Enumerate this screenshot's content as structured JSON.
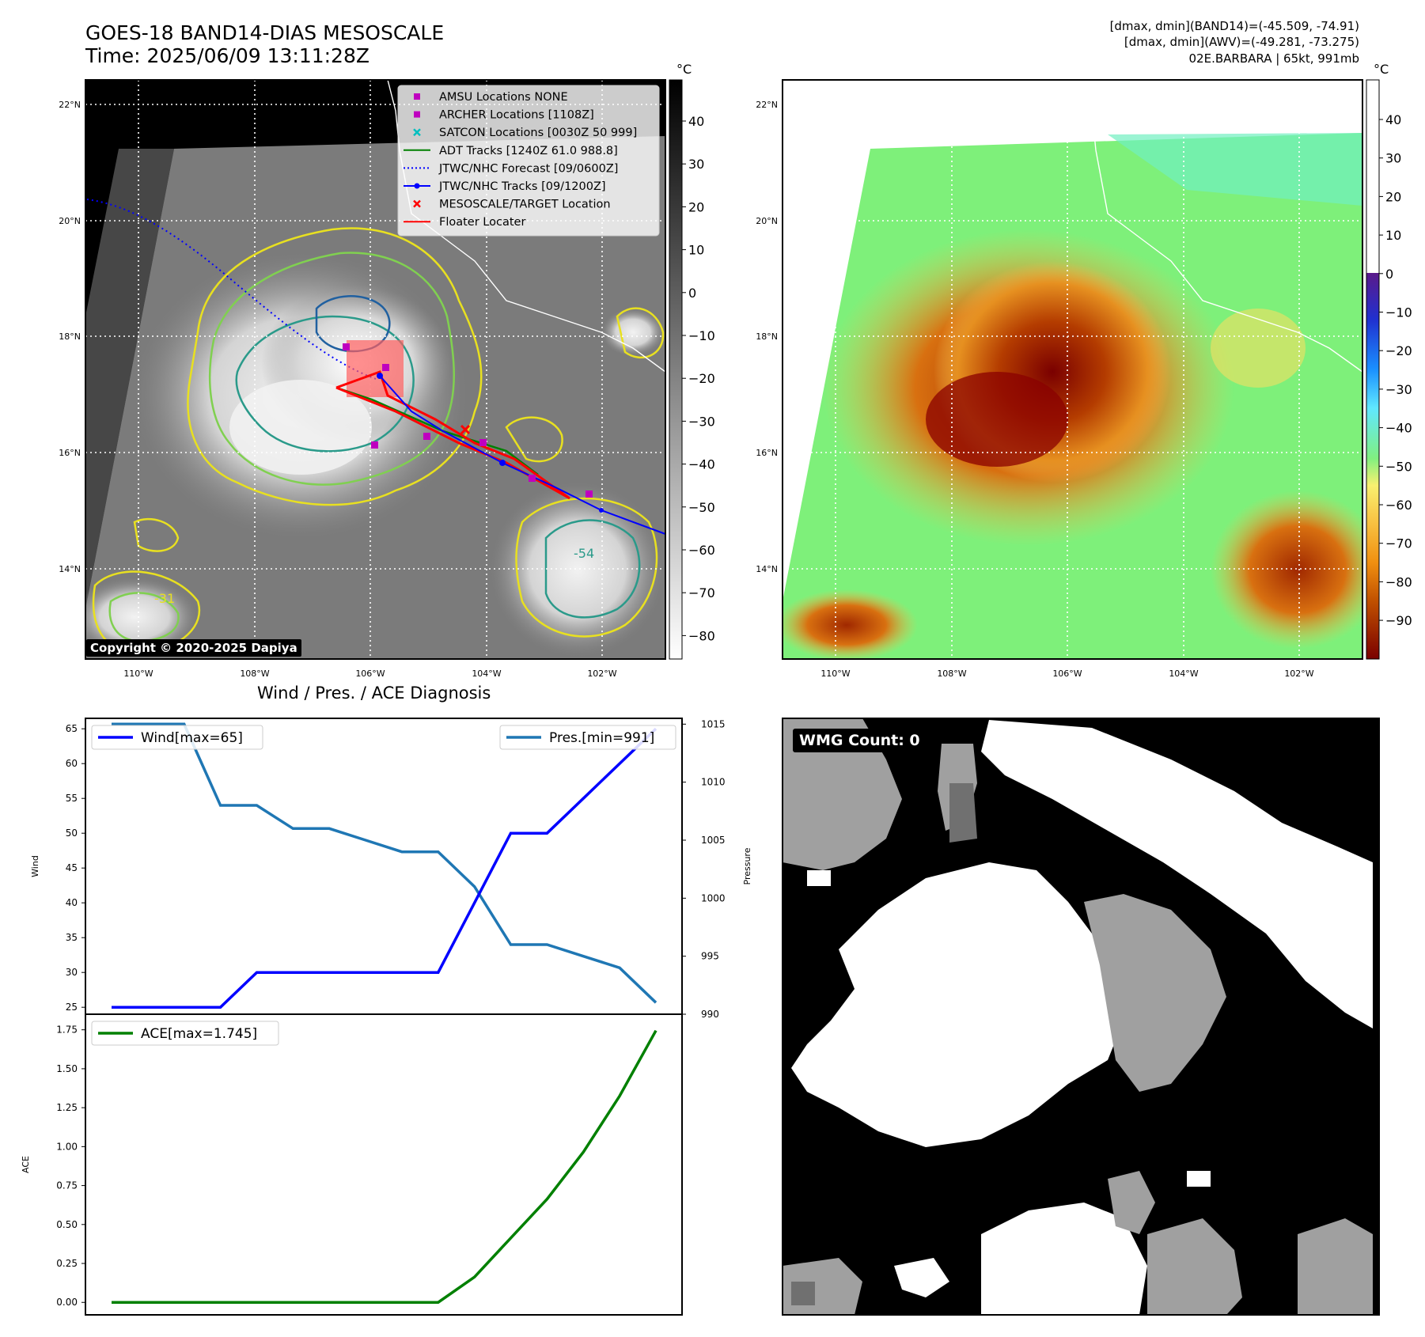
{
  "header": {
    "title_line1": "GOES-18 BAND14-DIAS MESOSCALE",
    "title_line2": "Time: 2025/06/09 13:11:28Z",
    "right_line1": "[dmax, dmin](BAND14)=(-45.509, -74.91)",
    "right_line2": "[dmax, dmin](AWV)=(-49.281, -73.275)",
    "right_line3": "02E.BARBARA | 65kt, 991mb"
  },
  "map": {
    "lat_labels": [
      "22°N",
      "20°N",
      "18°N",
      "16°N",
      "14°N"
    ],
    "lon_labels": [
      "110°W",
      "108°W",
      "106°W",
      "104°W",
      "102°W"
    ],
    "copyright": "Copyright © 2020-2025 Dapiya",
    "contour_labels": [
      "-31",
      "-54"
    ],
    "legend": [
      {
        "label": "AMSU Locations NONE",
        "symbol": "square",
        "color": "#bf00bf"
      },
      {
        "label": "ARCHER Locations [1108Z]",
        "symbol": "square",
        "color": "#bf00bf"
      },
      {
        "label": "SATCON Locations [0030Z 50 999]",
        "symbol": "x",
        "color": "#00bfbf"
      },
      {
        "label": "ADT Tracks [1240Z 61.0 988.8]",
        "symbol": "line",
        "color": "#008000"
      },
      {
        "label": "JTWC/NHC Forecast [09/0600Z]",
        "symbol": "dotted",
        "color": "#0000ff"
      },
      {
        "label": "JTWC/NHC Tracks [09/1200Z]",
        "symbol": "line-dot",
        "color": "#0000ff"
      },
      {
        "label": "MESOSCALE/TARGET Location",
        "symbol": "x",
        "color": "#ff0000"
      },
      {
        "label": "Floater Locater",
        "symbol": "line",
        "color": "#ff0000"
      }
    ]
  },
  "colorbar_gray": {
    "unit": "°C",
    "ticks": [
      "40",
      "30",
      "20",
      "10",
      "0",
      "−10",
      "−20",
      "−30",
      "−40",
      "−50",
      "−60",
      "−70",
      "−80"
    ]
  },
  "colorbar_color": {
    "unit": "°C",
    "ticks": [
      "40",
      "30",
      "20",
      "10",
      "0",
      "−10",
      "−20",
      "−30",
      "−40",
      "−50",
      "−60",
      "−70",
      "−80",
      "−90"
    ]
  },
  "diagnosis": {
    "title": "Wind / Pres. / ACE Diagnosis",
    "wind_axis_label": "Wind",
    "pressure_axis_label": "Pressure",
    "ace_axis_label": "ACE",
    "wind_ticks": [
      "65",
      "60",
      "55",
      "50",
      "45",
      "40",
      "35",
      "30",
      "25"
    ],
    "pressure_ticks": [
      "1015",
      "1010",
      "1005",
      "1000",
      "995",
      "990"
    ],
    "ace_ticks": [
      "1.75",
      "1.50",
      "1.25",
      "1.00",
      "0.75",
      "0.50",
      "0.25",
      "0.00"
    ]
  },
  "wmg": {
    "label": "WMG Count: 0"
  },
  "chart_data": [
    {
      "type": "line",
      "x": [
        0,
        1,
        2,
        3,
        4,
        5,
        6,
        7,
        8,
        9,
        10,
        11,
        12,
        13,
        14,
        15
      ],
      "series": [
        {
          "name": "Wind[max=65]",
          "axis": "left",
          "color": "#0000ff",
          "values": [
            25,
            25,
            25,
            25,
            30,
            30,
            30,
            30,
            30,
            30,
            40,
            50,
            50,
            55,
            60,
            65
          ]
        },
        {
          "name": "Pres.[min=991]",
          "axis": "right",
          "color": "#1f77b4",
          "values": [
            1015,
            1015,
            1015,
            1008,
            1008,
            1006,
            1006,
            1005,
            1004,
            1004,
            1001,
            996,
            996,
            995,
            994,
            991
          ]
        }
      ],
      "ylim_left": [
        24,
        66.5
      ],
      "ylim_right": [
        990,
        1015.5
      ],
      "legend_left": "upper-left",
      "legend_right": "upper-right"
    },
    {
      "type": "line",
      "x": [
        0,
        1,
        2,
        3,
        4,
        5,
        6,
        7,
        8,
        9,
        10,
        11,
        12,
        13,
        14,
        15
      ],
      "series": [
        {
          "name": "ACE[max=1.745]",
          "color": "#008000",
          "values": [
            0,
            0,
            0,
            0,
            0,
            0,
            0,
            0,
            0,
            0,
            0.163,
            0.413,
            0.663,
            0.965,
            1.325,
            1.745
          ]
        }
      ],
      "ylim": [
        -0.08,
        1.85
      ],
      "legend": "upper-left"
    }
  ]
}
